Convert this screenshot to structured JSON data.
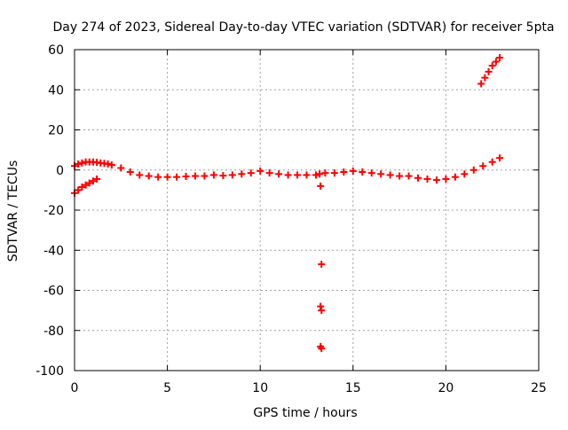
{
  "chart_data": {
    "type": "scatter",
    "title": "Day 274 of 2023, Sidereal Day-to-day VTEC variation (SDTVAR) for receiver 5pta",
    "xlabel": "GPS time / hours",
    "ylabel": "SDTVAR / TECUs",
    "xlim": [
      0,
      25
    ],
    "ylim": [
      -100,
      60
    ],
    "xticks": [
      0,
      5,
      10,
      15,
      20,
      25
    ],
    "yticks": [
      -100,
      -80,
      -60,
      -40,
      -20,
      0,
      20,
      40,
      60
    ],
    "grid": true,
    "marker": "+",
    "series": [
      {
        "name": "SDTVAR",
        "color": "#ff0000",
        "x": [
          0.0,
          0.2,
          0.4,
          0.6,
          0.8,
          1.0,
          1.2,
          0.0,
          0.2,
          0.4,
          0.6,
          0.8,
          1.0,
          1.2,
          1.4,
          1.6,
          1.8,
          2.0,
          2.5,
          3.0,
          3.5,
          4.0,
          4.5,
          5.0,
          5.5,
          6.0,
          6.5,
          7.0,
          7.5,
          8.0,
          8.5,
          9.0,
          9.5,
          10.0,
          10.5,
          11.0,
          11.5,
          12.0,
          12.5,
          13.0,
          13.2,
          13.5,
          14.0,
          14.5,
          15.0,
          15.5,
          16.0,
          16.5,
          17.0,
          17.5,
          18.0,
          18.5,
          19.0,
          19.5,
          20.0,
          20.5,
          21.0,
          21.5,
          22.0,
          22.5,
          22.9,
          21.9,
          22.1,
          22.3,
          22.5,
          22.7,
          22.9,
          13.25,
          13.3,
          13.25,
          13.3,
          13.25,
          13.3
        ],
        "y": [
          -11.5,
          -10,
          -8.5,
          -7.5,
          -6.5,
          -5.5,
          -4.5,
          2,
          3,
          3.5,
          4,
          4,
          4,
          3.8,
          3.5,
          3.3,
          3,
          2.5,
          1,
          -1,
          -2.5,
          -3,
          -3.5,
          -3.5,
          -3.5,
          -3.2,
          -3,
          -3,
          -2.5,
          -2.8,
          -2.5,
          -2,
          -1.5,
          -0.5,
          -1.5,
          -2,
          -2.5,
          -2.5,
          -2.5,
          -2.5,
          -2,
          -1.5,
          -1.5,
          -1,
          -0.5,
          -1,
          -1.5,
          -2,
          -2.5,
          -3,
          -3,
          -4,
          -4.5,
          -5,
          -4.5,
          -3.5,
          -2,
          0,
          2,
          4,
          6,
          43,
          46,
          49,
          52,
          54,
          56,
          -8,
          -47,
          -68,
          -70,
          -88,
          -89
        ]
      }
    ]
  }
}
